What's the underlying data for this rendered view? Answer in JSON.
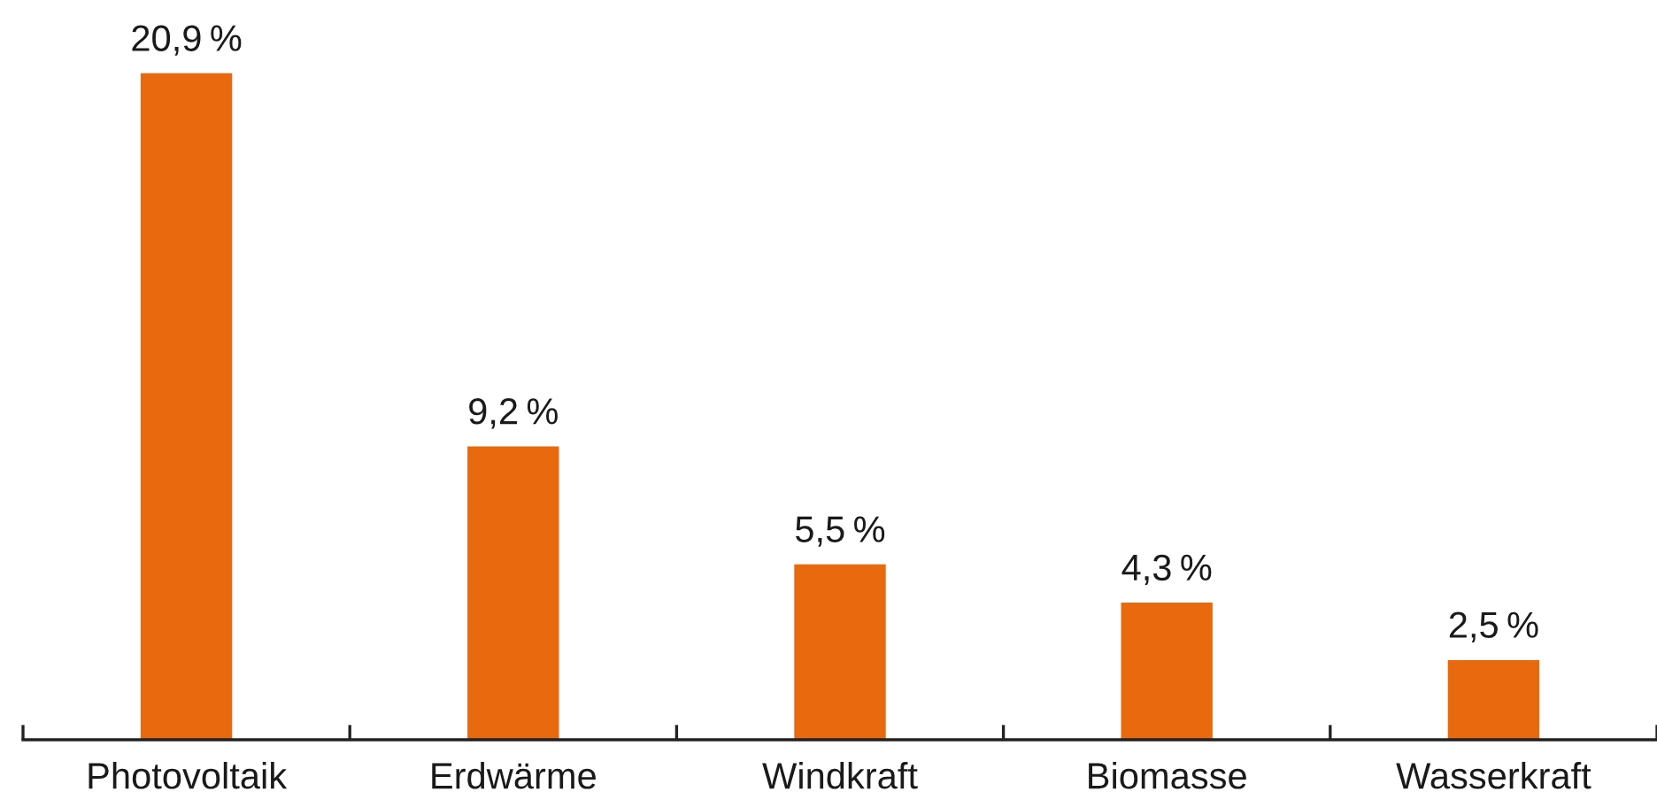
{
  "chart_data": {
    "type": "bar",
    "categories": [
      "Photovoltaik",
      "Erdwärme",
      "Windkraft",
      "Biomasse",
      "Wasserkraft"
    ],
    "values": [
      20.9,
      9.2,
      5.5,
      4.3,
      2.5
    ],
    "color": "#e9690f",
    "value_labels": [
      "20,9 %",
      "9,2 %",
      "5,5 %",
      "4,3 %",
      "2,5 %"
    ]
  }
}
